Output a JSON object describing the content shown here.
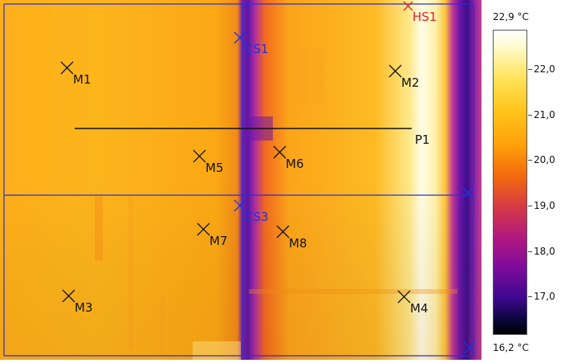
{
  "scale": {
    "max_label": "22,9 °C",
    "min_label": "16,2 °C",
    "ticks": [
      "22,0",
      "21,0",
      "20,0",
      "19,0",
      "18,0",
      "17,0"
    ],
    "tick_values": [
      22.0,
      21.0,
      20.0,
      19.0,
      18.0,
      17.0
    ],
    "max_value": 22.9,
    "min_value": 16.2
  },
  "markers": {
    "M1": "M1",
    "M2": "M2",
    "M3": "M3",
    "M4": "M4",
    "M5": "M5",
    "M6": "M6",
    "M7": "M7",
    "M8": "M8",
    "CS1": "CS1",
    "CS3": "CS3",
    "HS1": "HS1",
    "P1": "P1"
  },
  "colors": {
    "measure_marker": "#111111",
    "cold_spot": "#2231d8",
    "hot_spot": "#e0202a",
    "frame_lines": "#2a2fd0",
    "profile_line": "#111111"
  }
}
